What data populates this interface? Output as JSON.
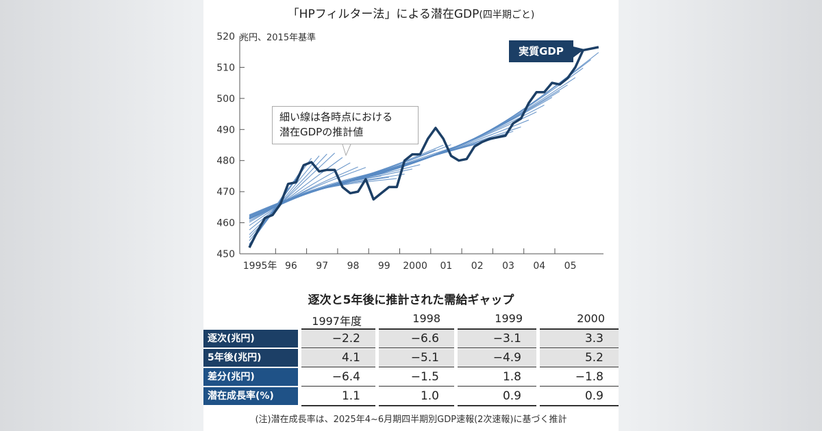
{
  "title": "「HPフィルター法」による潜在GDP",
  "title_sub": "(四半期ごと)",
  "chart_data": {
    "type": "line",
    "title": "「HPフィルター法」による潜在GDP(四半期ごと)",
    "ylabel": "兆円、2015年基準",
    "ylim": [
      450,
      520
    ],
    "yticks": [
      450,
      460,
      470,
      480,
      490,
      500,
      510,
      520
    ],
    "xtick_labels": [
      "1995年",
      "96",
      "97",
      "98",
      "99",
      "2000",
      "01",
      "02",
      "03",
      "04",
      "05"
    ],
    "x_start": "1995Q1",
    "frequency": "quarterly",
    "series": [
      {
        "name": "実質GDP",
        "color": "#1c3f66",
        "values": [
          452,
          457,
          461.5,
          462.5,
          466,
          472.5,
          473,
          478.5,
          479.5,
          476.5,
          477,
          477,
          471.5,
          469.5,
          470,
          474,
          467.5,
          469.5,
          471.5,
          471.5,
          480,
          482,
          482,
          487,
          490.5,
          487,
          481.5,
          480,
          480.5,
          484.5,
          486,
          487,
          487.5,
          488,
          492,
          493.5,
          498.5,
          502,
          502,
          505,
          504.5,
          506.5,
          510,
          515.5,
          516,
          516.5
        ]
      }
    ],
    "estimates": {
      "name": "各時点における潜在GDPの推計値",
      "method": "HP filter",
      "lambda": 1600,
      "color": "#5b8cc4",
      "first_end_quarter_index": 4,
      "last_end_quarter_index": 45
    },
    "annotations": [
      "細い線は各時点における",
      "潜在GDPの推計値"
    ],
    "series_label": "実質GDP",
    "grid": false
  },
  "table": {
    "title": "逐次と5年後に推計された需給ギャップ",
    "columns": [
      "1997年度",
      "1998",
      "1999",
      "2000"
    ],
    "rows": [
      {
        "label": "逐次(兆円)",
        "values": [
          "−2.2",
          "−6.6",
          "−3.1",
          "3.3"
        ]
      },
      {
        "label": "5年後(兆円)",
        "values": [
          "4.1",
          "−5.1",
          "−4.9",
          "5.2"
        ]
      },
      {
        "label": "差分(兆円)",
        "values": [
          "−6.4",
          "−1.5",
          "1.8",
          "−1.8"
        ]
      },
      {
        "label": "潜在成長率(%)",
        "values": [
          "1.1",
          "1.0",
          "0.9",
          "0.9"
        ]
      }
    ]
  },
  "note": "(注)潜在成長率は、2025年4~6月期四半期別GDP速報(2次速報)に基づく推計"
}
